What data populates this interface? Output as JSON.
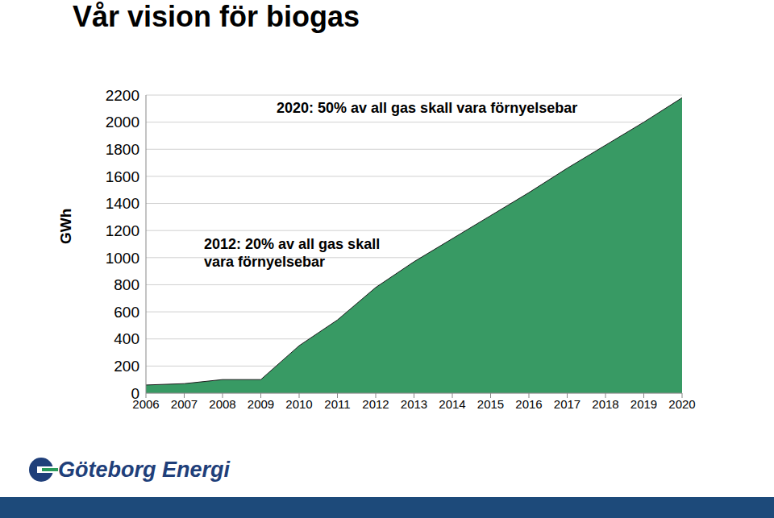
{
  "chart_data": {
    "type": "area",
    "title": "Vår vision för biogas",
    "y_label": "GWh",
    "categories": [
      "2006",
      "2007",
      "2008",
      "2009",
      "2010",
      "2011",
      "2012",
      "2013",
      "2014",
      "2015",
      "2016",
      "2017",
      "2018",
      "2019",
      "2020"
    ],
    "values": [
      60,
      70,
      100,
      100,
      350,
      540,
      780,
      970,
      1140,
      1310,
      1480,
      1660,
      1830,
      2000,
      2180
    ],
    "color": "#389a64",
    "ylim": [
      0,
      2200
    ],
    "yticks": [
      0,
      200,
      400,
      600,
      800,
      1000,
      1200,
      1400,
      1600,
      1800,
      2000,
      2200
    ],
    "grid": true,
    "annotations": [
      {
        "lines": [
          "2012: 20% av all gas skall",
          "vara förnyelsebar"
        ]
      },
      {
        "lines": [
          "2020: 50% av all gas skall vara förnyelsebar"
        ]
      }
    ],
    "source": "Göteborg Energi"
  }
}
